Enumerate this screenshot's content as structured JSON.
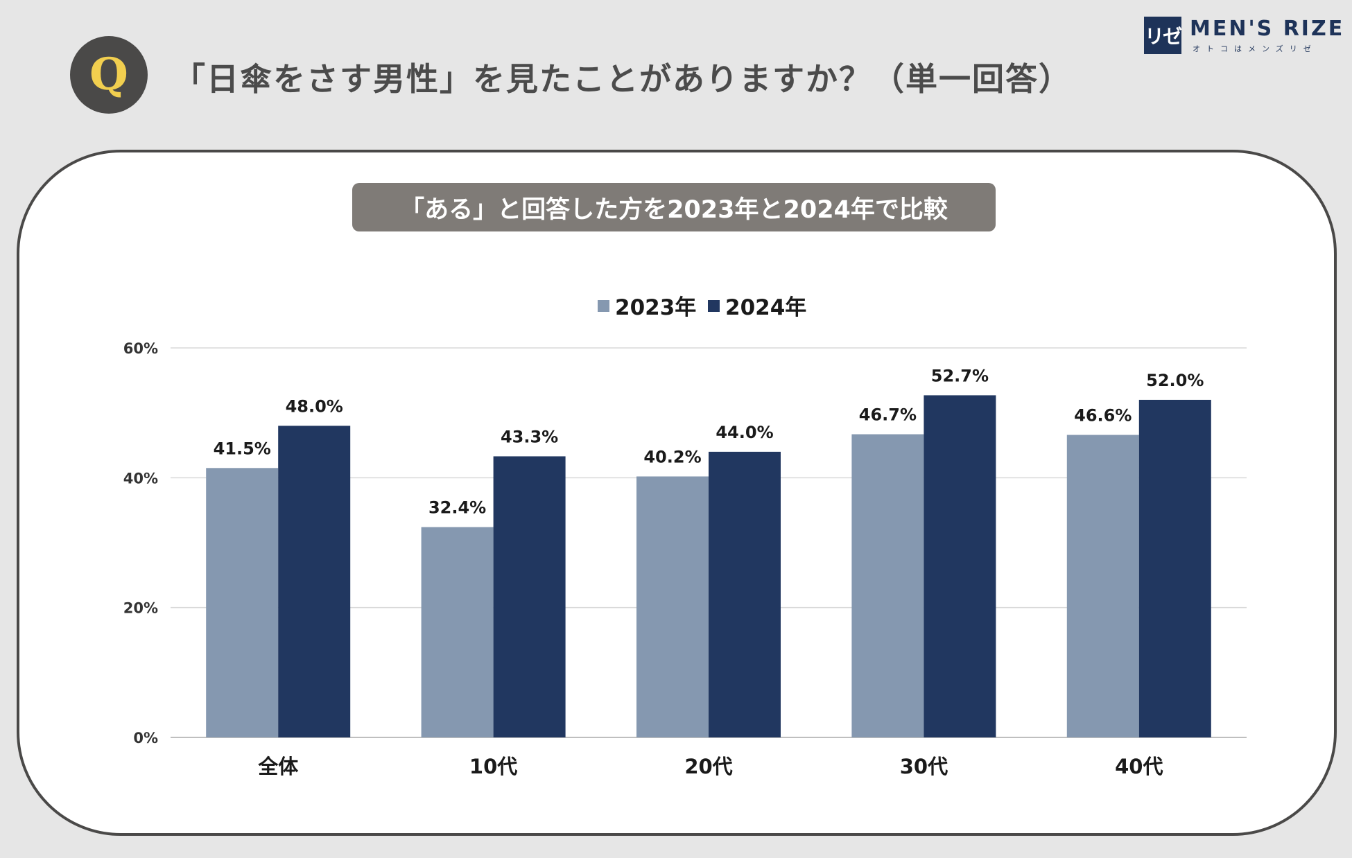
{
  "header": {
    "badge_letter": "Q",
    "question": "「日傘をさす男性」を見たことがありますか？（単一回答）"
  },
  "brand": {
    "mark": "リゼ",
    "name": "MEN'S RIZE",
    "tagline": "オトコはメンズリゼ"
  },
  "subtitle": "「ある」と回答した方を2023年と2024年で比較",
  "colors": {
    "series_2023": "#8598b0",
    "series_2024": "#213760",
    "badge_bg": "#4a4948",
    "badge_letter": "#f2cf4f"
  },
  "chart_data": {
    "type": "bar",
    "categories": [
      "全体",
      "10代",
      "20代",
      "30代",
      "40代"
    ],
    "series": [
      {
        "name": "2023年",
        "values": [
          41.5,
          32.4,
          40.2,
          46.7,
          46.6
        ],
        "labels": [
          "41.5%",
          "32.4%",
          "40.2%",
          "46.7%",
          "46.6%"
        ]
      },
      {
        "name": "2024年",
        "values": [
          48.0,
          43.3,
          44.0,
          52.7,
          52.0
        ],
        "labels": [
          "48.0%",
          "43.3%",
          "44.0%",
          "52.7%",
          "52.0%"
        ]
      }
    ],
    "ylim": [
      0,
      60
    ],
    "yticks": [
      0,
      20,
      40,
      60
    ],
    "ytick_labels": [
      "0%",
      "20%",
      "40%",
      "60%"
    ],
    "legend_position": "top-center",
    "grid": true
  }
}
